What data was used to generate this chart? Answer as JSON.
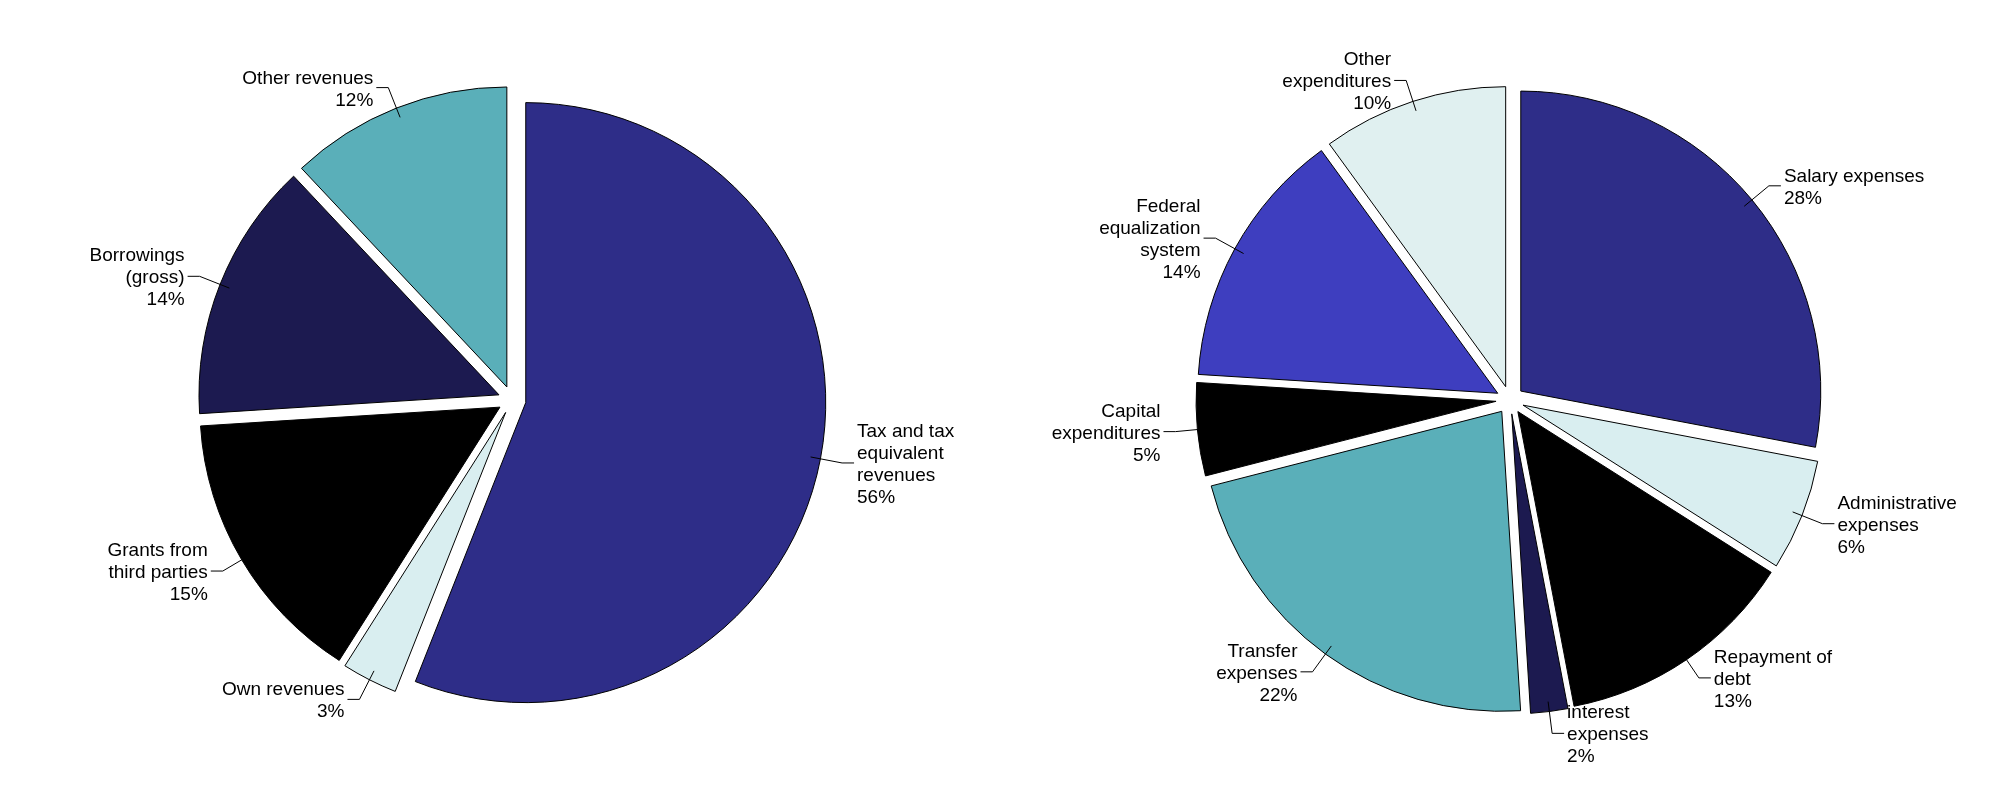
{
  "chart_data": [
    {
      "type": "pie",
      "categories": [
        "Tax and tax equivalent revenues",
        "Own revenues",
        "Grants from third parties",
        "Borrowings (gross)",
        "Other revenues"
      ],
      "values": [
        56,
        3,
        15,
        14,
        12
      ],
      "colors": [
        "#2e2d88",
        "#d9eef0",
        "#000000",
        "#1c1a50",
        "#5aafb9"
      ],
      "value_labels": [
        "56%",
        "3%",
        "15%",
        "14%",
        "12%"
      ]
    },
    {
      "type": "pie",
      "categories": [
        "Salary expenses",
        "Administrative expenses",
        "Repayment of debt",
        "interest expenses",
        "Transfer expenses",
        "Capital expenditures",
        "Federal equalization system",
        "Other expenditures"
      ],
      "values": [
        28,
        6,
        13,
        2,
        22,
        5,
        14,
        10
      ],
      "colors": [
        "#2e2d88",
        "#d9eef0",
        "#000000",
        "#1c1a50",
        "#5aafb9",
        "#000000",
        "#3e3ebf",
        "#e0f0f0"
      ],
      "value_labels": [
        "28%",
        "6%",
        "13%",
        "2%",
        "22%",
        "5%",
        "14%",
        "10%"
      ]
    }
  ]
}
